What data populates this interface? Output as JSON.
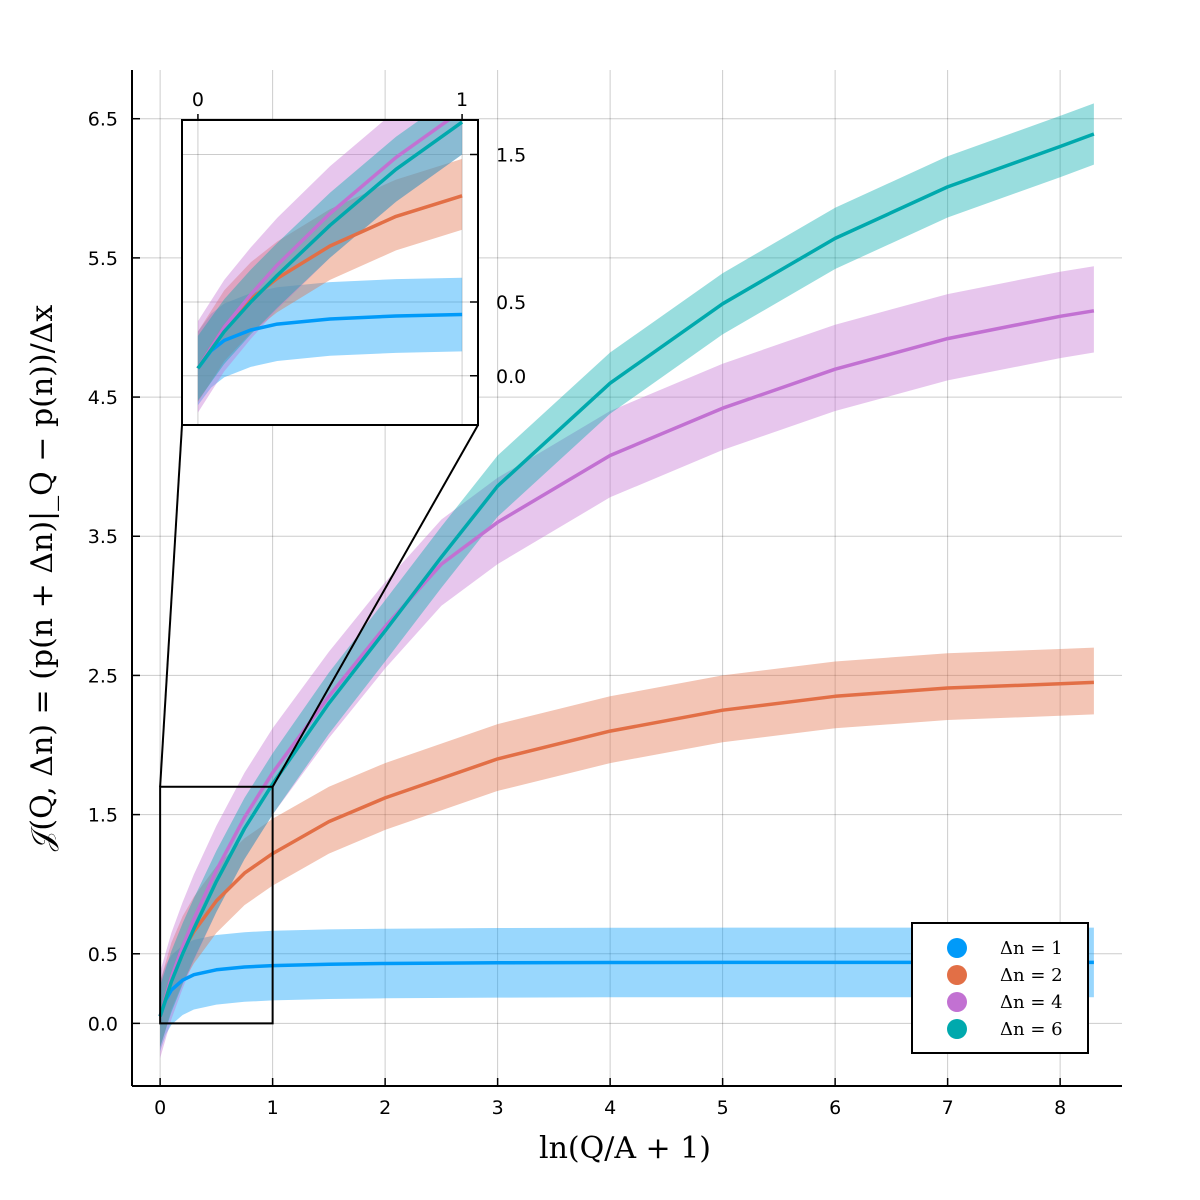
{
  "chart_data": {
    "type": "line",
    "xlabel": "ln(Q/A + 1)",
    "ylabel": "𝒥(Q, Δn) = (p(n + Δn)|_Q − p(n))/Δx",
    "xlim": [
      -0.25,
      8.55
    ],
    "ylim": [
      -0.45,
      6.85
    ],
    "x_ticks": [
      "0",
      "1",
      "2",
      "3",
      "4",
      "5",
      "6",
      "7",
      "8"
    ],
    "y_ticks": [
      "0.0",
      "0.5",
      "1.5",
      "2.5",
      "3.5",
      "4.5",
      "5.5",
      "6.5"
    ],
    "grid": true,
    "legend_position": "bottom-right",
    "series": [
      {
        "name": "Δn = 1",
        "color": "#009af9",
        "x": [
          0,
          0.05,
          0.1,
          0.2,
          0.3,
          0.5,
          0.75,
          1,
          1.5,
          2,
          3,
          4,
          5,
          6,
          7,
          8,
          8.3
        ],
        "values": [
          0.05,
          0.17,
          0.24,
          0.31,
          0.35,
          0.385,
          0.405,
          0.415,
          0.425,
          0.43,
          0.435,
          0.437,
          0.438,
          0.438,
          0.438,
          0.438,
          0.438
        ],
        "band": 0.25
      },
      {
        "name": "Δn = 2",
        "color": "#e26f46",
        "x": [
          0,
          0.1,
          0.2,
          0.3,
          0.5,
          0.75,
          1,
          1.5,
          2,
          3,
          4,
          5,
          6,
          7,
          8,
          8.3
        ],
        "values": [
          0.05,
          0.33,
          0.52,
          0.66,
          0.88,
          1.08,
          1.22,
          1.45,
          1.62,
          1.9,
          2.1,
          2.25,
          2.35,
          2.41,
          2.44,
          2.45
        ],
        "band_lower": 0.23,
        "band_upper": 0.25
      },
      {
        "name": "Δn = 4",
        "color": "#c271d2",
        "x": [
          0,
          0.1,
          0.2,
          0.3,
          0.5,
          0.75,
          1,
          1.5,
          2,
          2.5,
          3,
          4,
          5,
          6,
          7,
          8,
          8.3
        ],
        "values": [
          0.05,
          0.33,
          0.55,
          0.75,
          1.1,
          1.48,
          1.8,
          2.35,
          2.85,
          3.3,
          3.6,
          4.08,
          4.42,
          4.7,
          4.92,
          5.08,
          5.12
        ],
        "band_lower": 0.3,
        "band_upper": 0.32
      },
      {
        "name": "Δn = 6",
        "color": "#00a9ad",
        "x": [
          0,
          0.1,
          0.2,
          0.3,
          0.5,
          0.75,
          1,
          1.5,
          2,
          2.5,
          3,
          4,
          5,
          6,
          7,
          8,
          8.3
        ],
        "values": [
          0.05,
          0.3,
          0.5,
          0.68,
          1.02,
          1.4,
          1.72,
          2.3,
          2.82,
          3.35,
          3.86,
          4.6,
          5.17,
          5.64,
          6.01,
          6.3,
          6.39
        ],
        "band_lower": 0.22,
        "band_upper": 0.22
      }
    ],
    "inset": {
      "x_ticks": [
        "0",
        "1"
      ],
      "y_ticks": [
        "0.0",
        "0.5",
        "1.5"
      ],
      "zoom_box_x": [
        0,
        1
      ],
      "zoom_box_y": [
        0,
        1.7
      ]
    }
  }
}
